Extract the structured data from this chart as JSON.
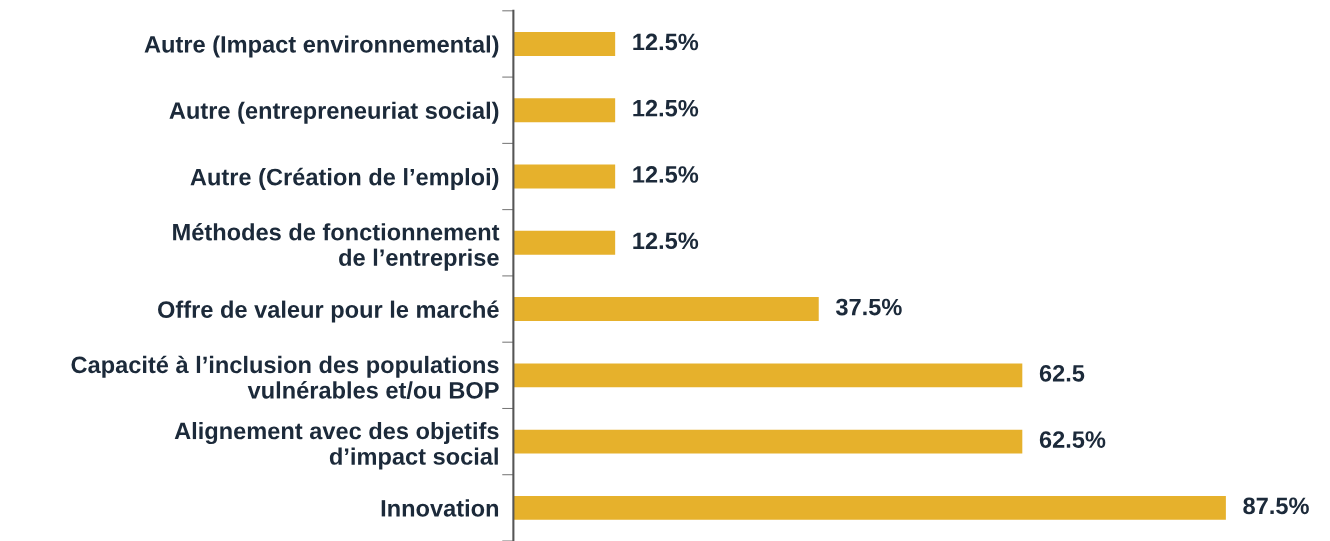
{
  "chart_data": {
    "type": "bar",
    "orientation": "horizontal",
    "categories": [
      "Autre (Impact environnemental)",
      "Autre (entrepreneuriat social)",
      "Autre (Création de l’emploi)",
      "Méthodes de fonctionnement\nde l’entreprise",
      "Offre de valeur pour le marché",
      "Capacité à l’inclusion des populations\nvulnérables et/ou BOP",
      "Alignement avec des objetifs\nd’impact social",
      "Innovation"
    ],
    "values": [
      12.5,
      12.5,
      12.5,
      12.5,
      37.5,
      62.5,
      62.5,
      87.5
    ],
    "value_labels": [
      "12.5%",
      "12.5%",
      "12.5%",
      "12.5%",
      "37.5%",
      "62.5",
      "62.5%",
      "87.5%"
    ],
    "color": "#e6b12c",
    "grid": false,
    "legend": false
  }
}
